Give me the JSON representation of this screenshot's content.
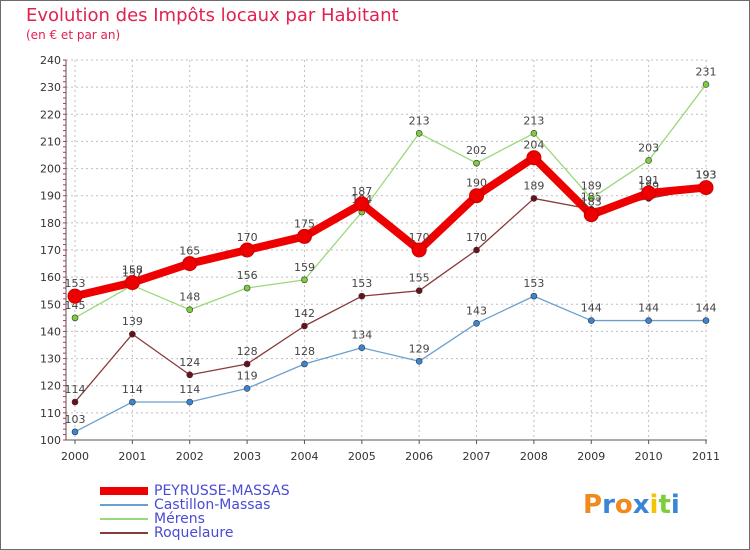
{
  "chart_data": {
    "type": "line",
    "title": "Evolution des Impôts locaux par Habitant",
    "subtitle": "(en € et par an)",
    "xlabel": "",
    "ylabel": "",
    "ylim": [
      100,
      240
    ],
    "y_ticks": [
      100,
      110,
      120,
      130,
      140,
      150,
      160,
      170,
      180,
      190,
      200,
      210,
      220,
      230,
      240
    ],
    "categories": [
      "2000",
      "2001",
      "2002",
      "2003",
      "2004",
      "2005",
      "2006",
      "2007",
      "2008",
      "2009",
      "2010",
      "2011"
    ],
    "series": [
      {
        "name": "Castillon-Massas",
        "color": "#6aa0cf",
        "marker": "#3a86d4",
        "values": [
          103,
          114,
          114,
          119,
          128,
          134,
          129,
          143,
          153,
          144,
          144,
          144
        ]
      },
      {
        "name": "Roquelaure",
        "color": "#8a3a3a",
        "marker": "#6b0f1a",
        "values": [
          114,
          139,
          124,
          128,
          142,
          153,
          155,
          170,
          189,
          185,
          189,
          193
        ]
      },
      {
        "name": "Mérens",
        "color": "#9bd87a",
        "marker": "#7dcd3d",
        "values": [
          145,
          157,
          148,
          156,
          159,
          184,
          213,
          202,
          213,
          189,
          203,
          231
        ]
      },
      {
        "name": "PEYRUSSE-MASSAS",
        "color": "#ee0000",
        "marker": "#ee0000",
        "values": [
          153,
          158,
          165,
          170,
          175,
          187,
          170,
          190,
          204,
          183,
          191,
          193
        ]
      }
    ],
    "legend_order": [
      "PEYRUSSE-MASSAS",
      "Castillon-Massas",
      "Mérens",
      "Roquelaure"
    ],
    "legend_position": "bottom-left"
  },
  "logo": {
    "letters": [
      "P",
      "r",
      "o",
      "x",
      "i",
      "t",
      "i"
    ],
    "colors": [
      "#f08a1c",
      "#3a86d4",
      "#f08a1c",
      "#3a86d4",
      "#f5c400",
      "#7dcd3d",
      "#3a86d4"
    ]
  }
}
